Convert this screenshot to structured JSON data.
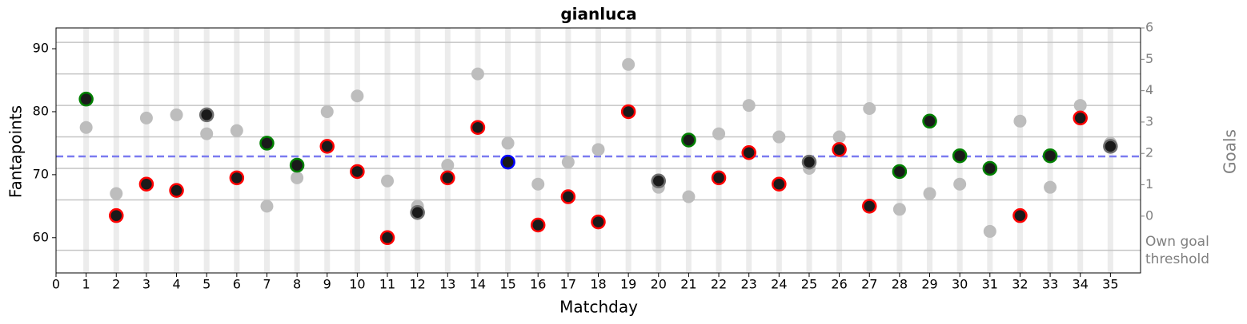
{
  "chart_data": {
    "type": "scatter",
    "title": "gianluca",
    "xlabel": "Matchday",
    "ylabel": "Fantapoints",
    "y2label": "Goals",
    "annotation": [
      "Own goal",
      "threshold"
    ],
    "x": [
      1,
      2,
      3,
      4,
      5,
      6,
      7,
      8,
      9,
      10,
      11,
      12,
      13,
      14,
      15,
      16,
      17,
      18,
      19,
      20,
      21,
      22,
      23,
      24,
      25,
      26,
      27,
      28,
      29,
      30,
      31,
      32,
      33,
      34,
      35
    ],
    "series": [
      {
        "color": "#bdbdbd",
        "values": [
          77.5,
          67,
          79,
          79.5,
          76.5,
          77,
          65,
          69.5,
          80,
          82.5,
          69,
          65,
          71.5,
          86,
          75,
          68.5,
          72,
          74,
          87.5,
          68,
          66.5,
          76.5,
          81,
          76,
          71,
          76,
          80.5,
          64.5,
          67,
          68.5,
          61,
          78.5,
          68,
          81,
          75
        ]
      },
      {
        "color": "#1a1a1a",
        "edgecolors": [
          "#008000",
          "#ff0000",
          "#ff0000",
          "#ff0000",
          "#6e6e6e",
          "#ff0000",
          "#008000",
          "#008000",
          "#ff0000",
          "#ff0000",
          "#ff0000",
          "#6e6e6e",
          "#ff0000",
          "#ff0000",
          "#0000ff",
          "#ff0000",
          "#ff0000",
          "#ff0000",
          "#ff0000",
          "#6e6e6e",
          "#008000",
          "#ff0000",
          "#ff0000",
          "#ff0000",
          "#6e6e6e",
          "#ff0000",
          "#ff0000",
          "#008000",
          "#008000",
          "#008000",
          "#008000",
          "#ff0000",
          "#008000",
          "#ff0000",
          "#6e6e6e"
        ],
        "values": [
          82,
          63.5,
          68.5,
          67.5,
          79.5,
          69.5,
          75,
          71.5,
          74.5,
          70.5,
          60,
          64,
          69.5,
          77.5,
          72,
          62,
          66.5,
          62.5,
          80,
          69,
          75.5,
          69.5,
          73.5,
          68.5,
          72,
          74,
          65,
          70.5,
          78.5,
          73,
          71,
          63.5,
          73,
          79,
          74.5
        ]
      }
    ],
    "mean_line": 72.9,
    "mean_color": "#7b7bf0",
    "hlines": [
      58,
      66,
      71,
      76,
      81,
      86,
      91
    ],
    "hline_color": "#c4c4c4",
    "band_color": "#ececec",
    "xlim": [
      0,
      36
    ],
    "xticks": [
      0,
      1,
      2,
      3,
      4,
      5,
      6,
      7,
      8,
      9,
      10,
      11,
      12,
      13,
      14,
      15,
      16,
      17,
      18,
      19,
      20,
      21,
      22,
      23,
      24,
      25,
      26,
      27,
      28,
      29,
      30,
      31,
      32,
      33,
      34,
      35
    ],
    "ylim": [
      54.4,
      93.3
    ],
    "yticks": [
      60,
      70,
      80,
      90
    ],
    "y2lim": [
      -1.81,
      6
    ],
    "y2ticks": [
      0,
      1,
      2,
      3,
      4,
      5,
      6
    ],
    "y2color": "#808080"
  }
}
